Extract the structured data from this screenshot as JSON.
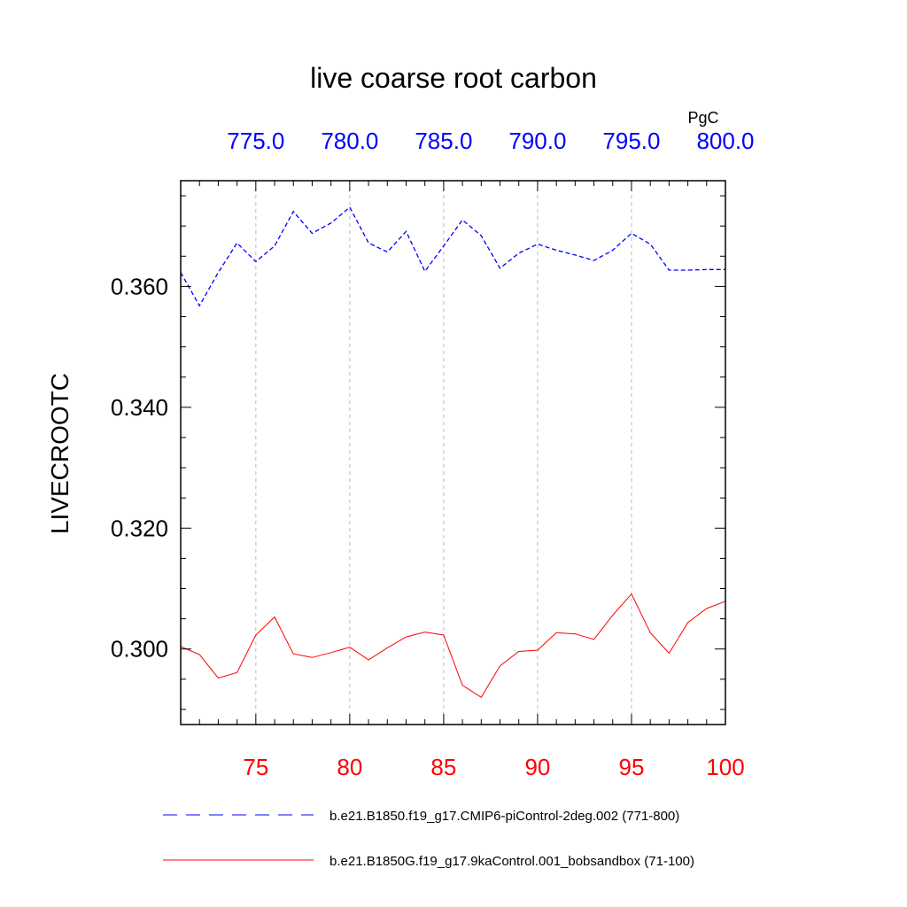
{
  "chart_data": {
    "type": "line",
    "title": "live coarse root carbon",
    "ylabel": "LIVECROOTC",
    "units": "PgC",
    "ylim": [
      0.2875,
      0.3775
    ],
    "y_ticks": [
      "0.300",
      "0.320",
      "0.340",
      "0.360"
    ],
    "y_tick_values": [
      0.3,
      0.32,
      0.34,
      0.36
    ],
    "x_bottom": {
      "range": [
        71,
        100
      ],
      "ticks": [
        "75",
        "80",
        "85",
        "90",
        "95",
        "100"
      ],
      "tick_values": [
        75,
        80,
        85,
        90,
        95,
        100
      ],
      "color": "#ff0000"
    },
    "x_top": {
      "range": [
        771,
        800
      ],
      "ticks": [
        "775.0",
        "780.0",
        "785.0",
        "790.0",
        "795.0",
        "800.0"
      ],
      "tick_values": [
        775,
        780,
        785,
        790,
        795,
        800
      ],
      "color": "#0000ff"
    },
    "grid": "vertical dashed at major ticks",
    "legend_placement": "bottom",
    "series": [
      {
        "name": "b.e21.B1850.f19_g17.CMIP6-piControl-2deg.002 (771-800)",
        "axis": "top",
        "color": "#0000ff",
        "style": "dashed",
        "x": [
          771,
          772,
          773,
          774,
          775,
          776,
          777,
          778,
          779,
          780,
          781,
          782,
          783,
          784,
          785,
          786,
          787,
          788,
          789,
          790,
          791,
          792,
          793,
          794,
          795,
          796,
          797,
          798,
          799,
          800
        ],
        "values": [
          0.3623,
          0.3568,
          0.3623,
          0.3672,
          0.3641,
          0.3667,
          0.3724,
          0.3688,
          0.3705,
          0.3731,
          0.3672,
          0.3657,
          0.3691,
          0.3625,
          0.3667,
          0.371,
          0.3684,
          0.363,
          0.3655,
          0.367,
          0.366,
          0.3652,
          0.3643,
          0.366,
          0.3688,
          0.367,
          0.3627,
          0.3627,
          0.3628,
          0.3628
        ]
      },
      {
        "name": "b.e21.B1850G.f19_g17.9kaControl.001_bobsandbox (71-100)",
        "axis": "bottom",
        "color": "#ff0000",
        "style": "solid",
        "x": [
          71,
          72,
          73,
          74,
          75,
          76,
          77,
          78,
          79,
          80,
          81,
          82,
          83,
          84,
          85,
          86,
          87,
          88,
          89,
          90,
          91,
          92,
          93,
          94,
          95,
          96,
          97,
          98,
          99,
          100
        ],
        "values": [
          0.3004,
          0.2991,
          0.2952,
          0.2961,
          0.3023,
          0.3053,
          0.2992,
          0.2986,
          0.2994,
          0.3003,
          0.2982,
          0.3002,
          0.302,
          0.3028,
          0.3023,
          0.294,
          0.292,
          0.2972,
          0.2996,
          0.2998,
          0.3027,
          0.3025,
          0.3016,
          0.3056,
          0.3091,
          0.3027,
          0.2993,
          0.3044,
          0.3067,
          0.3079
        ]
      }
    ]
  }
}
